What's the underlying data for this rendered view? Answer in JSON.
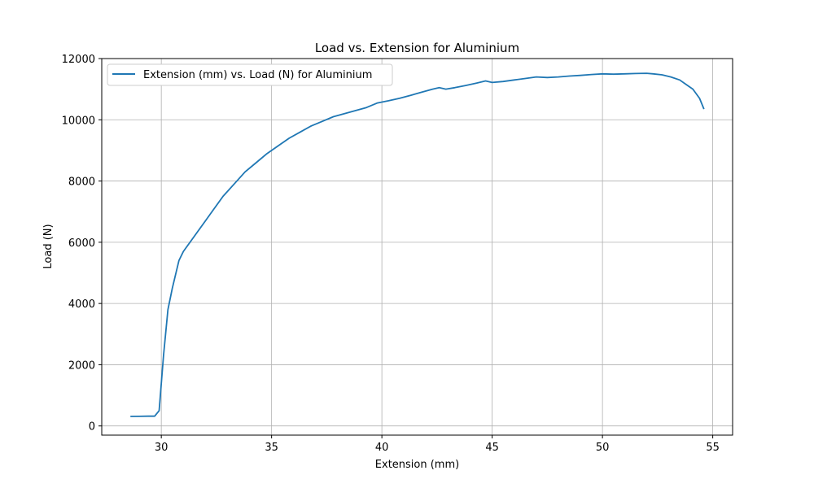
{
  "chart_data": {
    "type": "line",
    "title": "Load vs. Extension for Aluminium",
    "xlabel": "Extension (mm)",
    "ylabel": "Load (N)",
    "xlim": [
      27.3,
      55.9
    ],
    "ylim": [
      -300,
      12000
    ],
    "xticks": [
      30,
      35,
      40,
      45,
      50,
      55
    ],
    "yticks": [
      0,
      2000,
      4000,
      6000,
      8000,
      10000,
      12000
    ],
    "grid": true,
    "legend_position": "upper-left",
    "line_color": "#1f77b4",
    "series": [
      {
        "name": "Extension (mm) vs. Load (N) for Aluminium",
        "x": [
          28.6,
          29.0,
          29.4,
          29.7,
          29.9,
          30.1,
          30.3,
          30.5,
          30.8,
          31.0,
          31.3,
          31.6,
          32.0,
          32.4,
          32.8,
          33.3,
          33.8,
          34.3,
          34.8,
          35.3,
          35.8,
          36.3,
          36.8,
          37.3,
          37.8,
          38.3,
          38.8,
          39.3,
          39.8,
          40.3,
          40.8,
          41.3,
          41.8,
          42.3,
          42.6,
          42.9,
          43.3,
          43.8,
          44.3,
          44.7,
          45.0,
          45.5,
          46.0,
          46.5,
          47.0,
          47.5,
          48.0,
          48.5,
          49.0,
          49.5,
          50.0,
          50.5,
          51.0,
          51.5,
          52.0,
          52.3,
          52.7,
          53.1,
          53.5,
          53.8,
          54.1,
          54.4,
          54.6
        ],
        "y": [
          310,
          315,
          320,
          320,
          500,
          2300,
          3800,
          4500,
          5400,
          5700,
          6000,
          6300,
          6700,
          7100,
          7500,
          7900,
          8300,
          8600,
          8900,
          9150,
          9400,
          9600,
          9800,
          9950,
          10100,
          10200,
          10300,
          10400,
          10550,
          10620,
          10700,
          10800,
          10900,
          11000,
          11050,
          11000,
          11050,
          11120,
          11200,
          11270,
          11220,
          11250,
          11300,
          11350,
          11400,
          11380,
          11400,
          11430,
          11450,
          11480,
          11500,
          11490,
          11500,
          11510,
          11520,
          11500,
          11470,
          11400,
          11300,
          11150,
          11000,
          10700,
          10350
        ]
      }
    ]
  }
}
